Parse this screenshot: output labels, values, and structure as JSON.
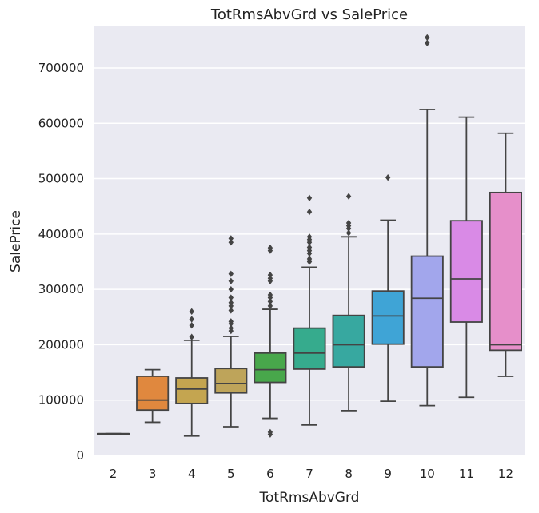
{
  "chart_data": {
    "type": "box",
    "title": "TotRmsAbvGrd vs SalePrice",
    "xlabel": "TotRmsAbvGrd",
    "ylabel": "SalePrice",
    "ylim": [
      0,
      775000
    ],
    "yticks": [
      0,
      100000,
      200000,
      300000,
      400000,
      500000,
      600000,
      700000
    ],
    "ytick_labels": [
      "0",
      "100000",
      "200000",
      "300000",
      "400000",
      "500000",
      "600000",
      "700000"
    ],
    "grid": true,
    "categories": [
      "2",
      "3",
      "4",
      "5",
      "6",
      "7",
      "8",
      "9",
      "10",
      "11",
      "12"
    ],
    "boxes": [
      {
        "category": "2",
        "color": "#3b75af",
        "whisker_low": 39300,
        "q1": 39300,
        "median": 39300,
        "q3": 39300,
        "whisker_high": 39300,
        "outliers": []
      },
      {
        "category": "3",
        "color": "#e0883e",
        "whisker_low": 60000,
        "q1": 82000,
        "median": 100000,
        "q3": 143000,
        "whisker_high": 155000,
        "outliers": []
      },
      {
        "category": "4",
        "color": "#c4a550",
        "whisker_low": 35000,
        "q1": 94000,
        "median": 120000,
        "q3": 140000,
        "whisker_high": 208000,
        "outliers": [
          214000,
          235000,
          246000,
          260000
        ]
      },
      {
        "category": "5",
        "color": "#bea45a",
        "whisker_low": 52000,
        "q1": 113000,
        "median": 130000,
        "q3": 157000,
        "whisker_high": 215000,
        "outliers": [
          225000,
          230000,
          238000,
          242000,
          262000,
          270000,
          276000,
          285000,
          300000,
          315000,
          328000,
          385000,
          392000
        ]
      },
      {
        "category": "6",
        "color": "#48a74b",
        "whisker_low": 67000,
        "q1": 132000,
        "median": 155000,
        "q3": 185000,
        "whisker_high": 264000,
        "outliers": [
          38000,
          42000,
          270000,
          278000,
          285000,
          290000,
          315000,
          320000,
          326000,
          370000,
          375000
        ]
      },
      {
        "category": "7",
        "color": "#36ab8d",
        "whisker_low": 55000,
        "q1": 156000,
        "median": 185000,
        "q3": 230000,
        "whisker_high": 340000,
        "outliers": [
          350000,
          355000,
          365000,
          370000,
          376000,
          385000,
          390000,
          395000,
          440000,
          465000
        ]
      },
      {
        "category": "8",
        "color": "#37a8a0",
        "whisker_low": 81000,
        "q1": 160000,
        "median": 200000,
        "q3": 253000,
        "whisker_high": 395000,
        "outliers": [
          402000,
          410000,
          415000,
          420000,
          468000
        ]
      },
      {
        "category": "9",
        "color": "#3fa4d6",
        "whisker_low": 98000,
        "q1": 201000,
        "median": 252000,
        "q3": 297000,
        "whisker_high": 425000,
        "outliers": [
          502000
        ]
      },
      {
        "category": "10",
        "color": "#a2a6ec",
        "whisker_low": 90000,
        "q1": 160000,
        "median": 284000,
        "q3": 360000,
        "whisker_high": 625000,
        "outliers": [
          745000,
          755000
        ]
      },
      {
        "category": "11",
        "color": "#d98ae6",
        "whisker_low": 105000,
        "q1": 241000,
        "median": 319000,
        "q3": 424000,
        "whisker_high": 611000,
        "outliers": []
      },
      {
        "category": "12",
        "color": "#e68fca",
        "whisker_low": 143000,
        "q1": 190000,
        "median": 200000,
        "q3": 475000,
        "whisker_high": 582000,
        "outliers": []
      }
    ]
  }
}
